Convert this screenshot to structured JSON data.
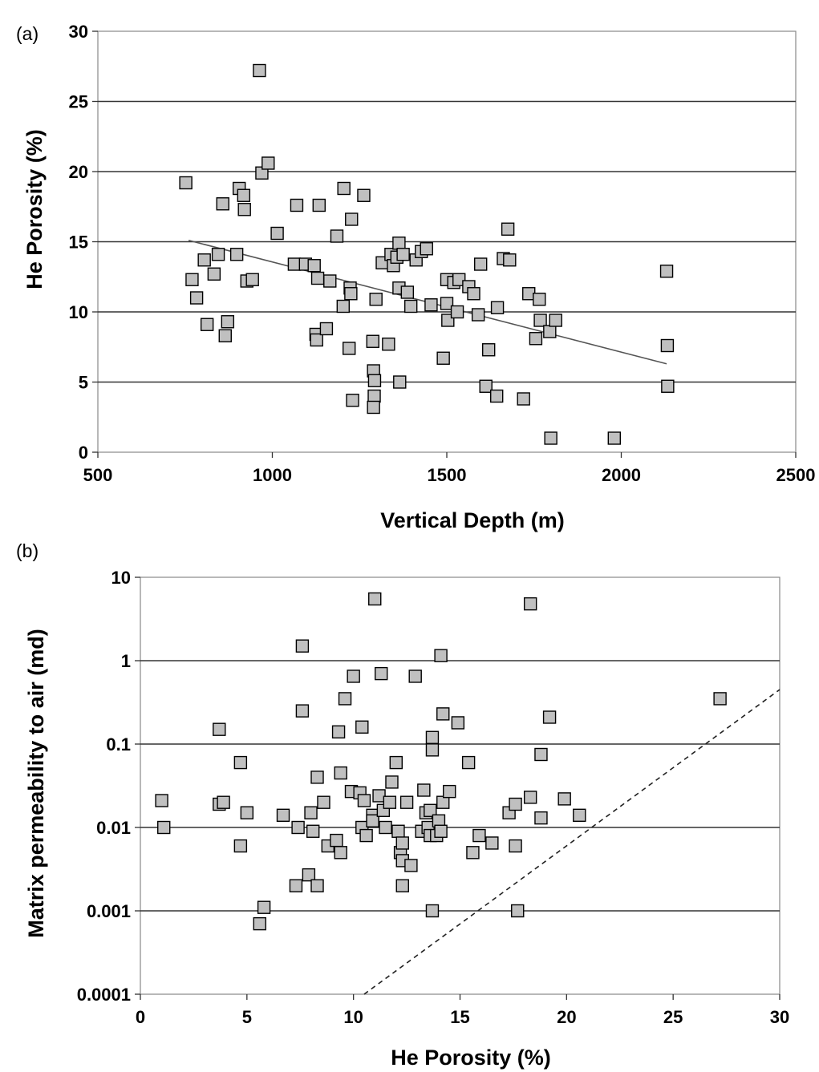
{
  "chart_data": [
    {
      "panel_label": "(a)",
      "type": "scatter",
      "xlabel": "Vertical Depth (m)",
      "ylabel": "He Porosity (%)",
      "xlim": [
        500,
        2500
      ],
      "ylim": [
        0,
        30
      ],
      "xticks": [
        "500",
        "1000",
        "1500",
        "2000",
        "2500"
      ],
      "yticks": [
        "0",
        "5",
        "10",
        "15",
        "20",
        "25",
        "30"
      ],
      "grid": "horizontal",
      "marker_color": "#c0c0c0",
      "trendline": {
        "x": [
          760,
          2130
        ],
        "y": [
          15.1,
          6.3
        ]
      },
      "points": [
        [
          752,
          19.2
        ],
        [
          770,
          12.3
        ],
        [
          783,
          11.0
        ],
        [
          805,
          13.7
        ],
        [
          813,
          9.1
        ],
        [
          833,
          12.7
        ],
        [
          845,
          14.1
        ],
        [
          858,
          17.7
        ],
        [
          865,
          8.3
        ],
        [
          872,
          9.3
        ],
        [
          898,
          14.1
        ],
        [
          905,
          18.8
        ],
        [
          918,
          18.3
        ],
        [
          920,
          17.3
        ],
        [
          927,
          12.2
        ],
        [
          943,
          12.3
        ],
        [
          963,
          27.2
        ],
        [
          970,
          19.9
        ],
        [
          988,
          20.6
        ],
        [
          1014,
          15.6
        ],
        [
          1063,
          13.4
        ],
        [
          1070,
          17.6
        ],
        [
          1095,
          13.4
        ],
        [
          1120,
          13.3
        ],
        [
          1125,
          8.4
        ],
        [
          1127,
          8.0
        ],
        [
          1134,
          17.6
        ],
        [
          1130,
          12.4
        ],
        [
          1155,
          8.8
        ],
        [
          1165,
          12.2
        ],
        [
          1185,
          15.4
        ],
        [
          1203,
          10.4
        ],
        [
          1205,
          18.8
        ],
        [
          1220,
          7.4
        ],
        [
          1223,
          11.7
        ],
        [
          1225,
          11.3
        ],
        [
          1227,
          16.6
        ],
        [
          1230,
          3.7
        ],
        [
          1262,
          18.3
        ],
        [
          1288,
          7.9
        ],
        [
          1290,
          5.8
        ],
        [
          1292,
          4.0
        ],
        [
          1290,
          3.2
        ],
        [
          1293,
          5.1
        ],
        [
          1297,
          10.9
        ],
        [
          1315,
          13.5
        ],
        [
          1333,
          7.7
        ],
        [
          1340,
          14.1
        ],
        [
          1347,
          13.3
        ],
        [
          1357,
          13.9
        ],
        [
          1363,
          14.9
        ],
        [
          1363,
          11.7
        ],
        [
          1365,
          5.0
        ],
        [
          1375,
          14.1
        ],
        [
          1387,
          11.4
        ],
        [
          1397,
          10.4
        ],
        [
          1412,
          13.7
        ],
        [
          1427,
          14.3
        ],
        [
          1442,
          14.5
        ],
        [
          1455,
          10.5
        ],
        [
          1490,
          6.7
        ],
        [
          1500,
          12.3
        ],
        [
          1500,
          10.6
        ],
        [
          1503,
          9.4
        ],
        [
          1520,
          12.1
        ],
        [
          1530,
          10.0
        ],
        [
          1535,
          12.3
        ],
        [
          1563,
          11.8
        ],
        [
          1577,
          11.3
        ],
        [
          1590,
          9.8
        ],
        [
          1597,
          13.4
        ],
        [
          1612,
          4.7
        ],
        [
          1620,
          7.3
        ],
        [
          1643,
          4.0
        ],
        [
          1645,
          10.3
        ],
        [
          1662,
          13.8
        ],
        [
          1675,
          15.9
        ],
        [
          1680,
          13.7
        ],
        [
          1720,
          3.8
        ],
        [
          1735,
          11.3
        ],
        [
          1755,
          8.1
        ],
        [
          1765,
          10.9
        ],
        [
          1768,
          9.4
        ],
        [
          1795,
          8.6
        ],
        [
          1798,
          1.0
        ],
        [
          1812,
          9.4
        ],
        [
          1980,
          1.0
        ],
        [
          2130,
          12.9
        ],
        [
          2132,
          7.6
        ],
        [
          2133,
          4.7
        ]
      ]
    },
    {
      "panel_label": "(b)",
      "type": "scatter",
      "xlabel": "He Porosity (%)",
      "ylabel": "Matrix permeability to air (md)",
      "xlim": [
        0,
        30
      ],
      "ylim": [
        0.0001,
        10
      ],
      "yscale": "log",
      "xticks": [
        "0",
        "5",
        "10",
        "15",
        "20",
        "25",
        "30"
      ],
      "yticks": [
        "0.0001",
        "0.001",
        "0.01",
        "0.1",
        "1",
        "10"
      ],
      "grid": "horizontal",
      "marker_color": "#c0c0c0",
      "reference_line": {
        "style": "dashed",
        "x": [
          10.5,
          30
        ],
        "y": [
          0.0001,
          0.45
        ]
      },
      "points": [
        [
          1.0,
          0.021
        ],
        [
          1.1,
          0.01
        ],
        [
          3.7,
          0.15
        ],
        [
          3.7,
          0.019
        ],
        [
          3.9,
          0.02
        ],
        [
          4.7,
          0.06
        ],
        [
          4.7,
          0.006
        ],
        [
          5.0,
          0.015
        ],
        [
          5.6,
          0.0007
        ],
        [
          5.8,
          0.0011
        ],
        [
          6.7,
          0.014
        ],
        [
          7.3,
          0.002
        ],
        [
          7.4,
          0.01
        ],
        [
          7.6,
          0.25
        ],
        [
          7.6,
          1.5
        ],
        [
          7.9,
          0.0027
        ],
        [
          8.0,
          0.015
        ],
        [
          8.1,
          0.009
        ],
        [
          8.3,
          0.002
        ],
        [
          8.3,
          0.04
        ],
        [
          8.6,
          0.02
        ],
        [
          8.8,
          0.006
        ],
        [
          9.2,
          0.007
        ],
        [
          9.3,
          0.14
        ],
        [
          9.4,
          0.005
        ],
        [
          9.4,
          0.045
        ],
        [
          9.6,
          0.35
        ],
        [
          9.9,
          0.027
        ],
        [
          10.0,
          0.65
        ],
        [
          10.3,
          0.026
        ],
        [
          10.4,
          0.16
        ],
        [
          10.4,
          0.01
        ],
        [
          10.5,
          0.021
        ],
        [
          10.6,
          0.008
        ],
        [
          10.9,
          0.014
        ],
        [
          10.9,
          0.012
        ],
        [
          11.0,
          5.5
        ],
        [
          11.2,
          0.024
        ],
        [
          11.3,
          0.7
        ],
        [
          11.4,
          0.016
        ],
        [
          11.5,
          0.01
        ],
        [
          11.7,
          0.02
        ],
        [
          11.8,
          0.035
        ],
        [
          12.0,
          0.06
        ],
        [
          12.1,
          0.009
        ],
        [
          12.2,
          0.005
        ],
        [
          12.3,
          0.0065
        ],
        [
          12.3,
          0.004
        ],
        [
          12.3,
          0.002
        ],
        [
          12.5,
          0.02
        ],
        [
          12.7,
          0.0035
        ],
        [
          12.9,
          0.65
        ],
        [
          13.2,
          0.009
        ],
        [
          13.3,
          0.028
        ],
        [
          13.4,
          0.015
        ],
        [
          13.5,
          0.01
        ],
        [
          13.6,
          0.016
        ],
        [
          13.6,
          0.008
        ],
        [
          13.7,
          0.12
        ],
        [
          13.7,
          0.085
        ],
        [
          13.7,
          0.001
        ],
        [
          13.9,
          0.008
        ],
        [
          14.0,
          0.012
        ],
        [
          14.1,
          0.009
        ],
        [
          14.1,
          1.15
        ],
        [
          14.2,
          0.23
        ],
        [
          14.2,
          0.02
        ],
        [
          14.5,
          0.027
        ],
        [
          14.9,
          0.18
        ],
        [
          15.4,
          0.06
        ],
        [
          15.6,
          0.005
        ],
        [
          15.9,
          0.008
        ],
        [
          16.5,
          0.0065
        ],
        [
          17.3,
          0.015
        ],
        [
          17.6,
          0.019
        ],
        [
          17.6,
          0.006
        ],
        [
          17.7,
          0.001
        ],
        [
          18.3,
          0.023
        ],
        [
          18.3,
          4.8
        ],
        [
          18.8,
          0.075
        ],
        [
          18.8,
          0.013
        ],
        [
          19.2,
          0.21
        ],
        [
          19.9,
          0.022
        ],
        [
          20.6,
          0.014
        ],
        [
          27.2,
          0.35
        ]
      ]
    }
  ]
}
